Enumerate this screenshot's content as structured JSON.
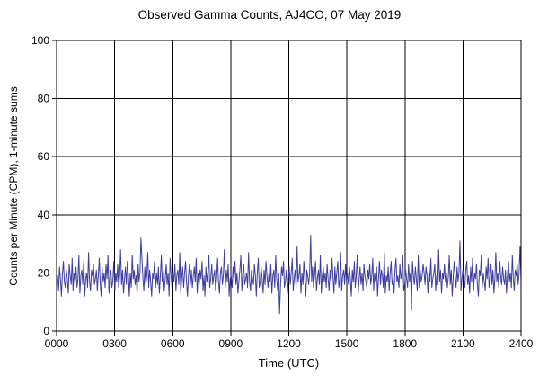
{
  "chart_data": {
    "type": "line",
    "title": "Observed Gamma Counts, AJ4CO, 07 May 2019",
    "xlabel": "Time (UTC)",
    "ylabel": "Counts per Minute (CPM), 1-minute sums",
    "x_ticks": [
      "0000",
      "0300",
      "0600",
      "0900",
      "1200",
      "1500",
      "1800",
      "2100",
      "2400"
    ],
    "x_range_minutes": [
      0,
      1440
    ],
    "ylim": [
      0,
      100
    ],
    "y_ticks": [
      0,
      20,
      40,
      60,
      80,
      100
    ],
    "grid": true,
    "legend": "none",
    "line_color": "#3d3d9e",
    "axis_color": "#000000",
    "background_color": "#ffffff",
    "series": [
      {
        "name": "gamma_cpm_1min_sums",
        "values": [
          16,
          19,
          14,
          22,
          18,
          12,
          20,
          24,
          17,
          15,
          21,
          18,
          13,
          23,
          19,
          16,
          25,
          14,
          20,
          17,
          22,
          15,
          18,
          26,
          13,
          19,
          21,
          16,
          24,
          12,
          18,
          20,
          15,
          27,
          17,
          14,
          21,
          19,
          23,
          16,
          18,
          21,
          14,
          19,
          25,
          16,
          12,
          22,
          17,
          20,
          15,
          23,
          18,
          26,
          13,
          19,
          21,
          15,
          17,
          24,
          14,
          20,
          17,
          23,
          15,
          19,
          28,
          16,
          21,
          13,
          18,
          22,
          16,
          24,
          19,
          12,
          20,
          15,
          26,
          18,
          21,
          16,
          19,
          13,
          23,
          17,
          20,
          32,
          25,
          18,
          14,
          22,
          16,
          19,
          27,
          15,
          21,
          17,
          12,
          20,
          18,
          24,
          15,
          20,
          16,
          22,
          13,
          19,
          26,
          17,
          21,
          14,
          18,
          23,
          16,
          20,
          12,
          25,
          19,
          15,
          20,
          17,
          23,
          14,
          19,
          21,
          16,
          27,
          13,
          18,
          22,
          15,
          20,
          24,
          17,
          12,
          19,
          23,
          16,
          21,
          15,
          19,
          22,
          17,
          25,
          13,
          20,
          16,
          21,
          18,
          24,
          14,
          19,
          12,
          22,
          17,
          20,
          26,
          15,
          18,
          23,
          16,
          19,
          21,
          14,
          18,
          25,
          17,
          13,
          20,
          22,
          16,
          19,
          28,
          15,
          21,
          17,
          23,
          12,
          18,
          19,
          15,
          22,
          18,
          24,
          16,
          20,
          13,
          17,
          21,
          26,
          14,
          19,
          23,
          16,
          18,
          20,
          15,
          27,
          17,
          14,
          21,
          18,
          16,
          23,
          19,
          12,
          20,
          25,
          15,
          17,
          22,
          18,
          13,
          21,
          16,
          24,
          19,
          15,
          20,
          17,
          23,
          13,
          19,
          21,
          15,
          26,
          18,
          14,
          20,
          6,
          16,
          22,
          19,
          24,
          15,
          17,
          21,
          13,
          18,
          22,
          16,
          20,
          25,
          14,
          18,
          21,
          15,
          29,
          17,
          19,
          23,
          13,
          20,
          16,
          24,
          18,
          12,
          21,
          19,
          16,
          20,
          33,
          17,
          22,
          15,
          19,
          24,
          14,
          18,
          21,
          16,
          26,
          13,
          19,
          22,
          17,
          20,
          15,
          23,
          18,
          14,
          21,
          17,
          25,
          19,
          13,
          22,
          16,
          20,
          24,
          15,
          18,
          27,
          14,
          19,
          21,
          16,
          23,
          17,
          20,
          16,
          22,
          18,
          12,
          21,
          17,
          24,
          15,
          19,
          26,
          13,
          18,
          22,
          16,
          20,
          14,
          23,
          19,
          17,
          15,
          21,
          18,
          23,
          16,
          19,
          25,
          14,
          20,
          17,
          22,
          12,
          18,
          24,
          16,
          21,
          19,
          15,
          27,
          13,
          19,
          17,
          22,
          14,
          20,
          24,
          16,
          18,
          13,
          21,
          25,
          17,
          19,
          15,
          23,
          18,
          20,
          26,
          14,
          16,
          21,
          18,
          15,
          23,
          17,
          20,
          7,
          24,
          19,
          16,
          22,
          18,
          14,
          26,
          15,
          21,
          17,
          19,
          23,
          20,
          16,
          22,
          19,
          13,
          21,
          17,
          25,
          15,
          18,
          20,
          23,
          14,
          19,
          16,
          28,
          17,
          21,
          13,
          20,
          18,
          23,
          17,
          20,
          15,
          19,
          26,
          16,
          21,
          12,
          18,
          24,
          19,
          15,
          22,
          17,
          20,
          31,
          14,
          18,
          21,
          18,
          15,
          21,
          24,
          16,
          19,
          13,
          22,
          17,
          25,
          14,
          20,
          18,
          23,
          16,
          12,
          21,
          19,
          26,
          15,
          20,
          17,
          14,
          22,
          18,
          25,
          15,
          19,
          23,
          16,
          21,
          13,
          18,
          27,
          17,
          20,
          15,
          24,
          19,
          16,
          22,
          18,
          16,
          21,
          13,
          19,
          24,
          17,
          20,
          15,
          26,
          18,
          14,
          21,
          19,
          23,
          16,
          20,
          29,
          17
        ]
      }
    ]
  }
}
